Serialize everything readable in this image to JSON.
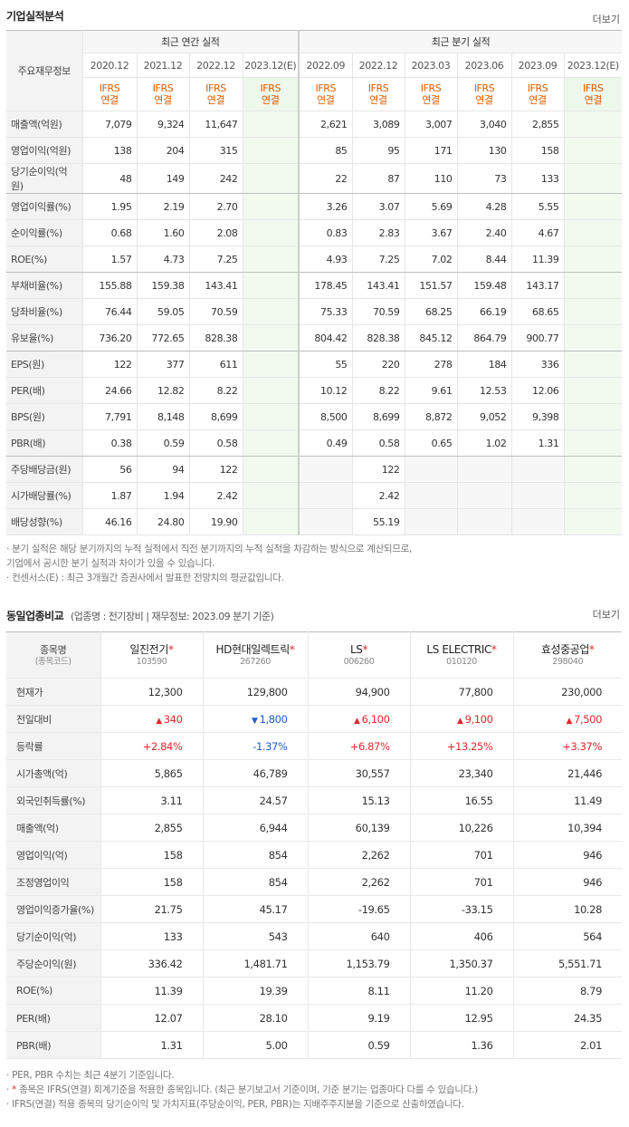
{
  "section1": {
    "title": "기업실적분석",
    "more": "더보기"
  },
  "fin": {
    "corner": "주요재무정보",
    "annual_title": "최근 연간 실적",
    "quarter_title": "최근 분기 실적",
    "annual_periods": [
      "2020.12",
      "2021.12",
      "2022.12",
      "2023.12(E)"
    ],
    "quarter_periods": [
      "2022.09",
      "2022.12",
      "2023.03",
      "2023.06",
      "2023.09",
      "2023.12(E)"
    ],
    "ifrs_line1": "IFRS",
    "ifrs_line2": "연결",
    "rows": [
      {
        "label": "매출액(억원)",
        "annual": [
          "7,079",
          "9,324",
          "11,647",
          ""
        ],
        "quarter": [
          "2,621",
          "3,089",
          "3,007",
          "3,040",
          "2,855",
          ""
        ]
      },
      {
        "label": "영업이익(억원)",
        "annual": [
          "138",
          "204",
          "315",
          ""
        ],
        "quarter": [
          "85",
          "95",
          "171",
          "130",
          "158",
          ""
        ]
      },
      {
        "label": "당기순이익(억원)",
        "annual": [
          "48",
          "149",
          "242",
          ""
        ],
        "quarter": [
          "22",
          "87",
          "110",
          "73",
          "133",
          ""
        ]
      },
      {
        "label": "영업이익률(%)",
        "annual": [
          "1.95",
          "2.19",
          "2.70",
          ""
        ],
        "quarter": [
          "3.26",
          "3.07",
          "5.69",
          "4.28",
          "5.55",
          ""
        ]
      },
      {
        "label": "순이익률(%)",
        "annual": [
          "0.68",
          "1.60",
          "2.08",
          ""
        ],
        "quarter": [
          "0.83",
          "2.83",
          "3.67",
          "2.40",
          "4.67",
          ""
        ]
      },
      {
        "label": "ROE(%)",
        "annual": [
          "1.57",
          "4.73",
          "7.25",
          ""
        ],
        "quarter": [
          "4.93",
          "7.25",
          "7.02",
          "8.44",
          "11.39",
          ""
        ]
      },
      {
        "label": "부채비율(%)",
        "annual": [
          "155.88",
          "159.38",
          "143.41",
          ""
        ],
        "quarter": [
          "178.45",
          "143.41",
          "151.57",
          "159.48",
          "143.17",
          ""
        ]
      },
      {
        "label": "당좌비율(%)",
        "annual": [
          "76.44",
          "59.05",
          "70.59",
          ""
        ],
        "quarter": [
          "75.33",
          "70.59",
          "68.25",
          "66.19",
          "68.65",
          ""
        ]
      },
      {
        "label": "유보율(%)",
        "annual": [
          "736.20",
          "772.65",
          "828.38",
          ""
        ],
        "quarter": [
          "804.42",
          "828.38",
          "845.12",
          "864.79",
          "900.77",
          ""
        ]
      },
      {
        "label": "EPS(원)",
        "annual": [
          "122",
          "377",
          "611",
          ""
        ],
        "quarter": [
          "55",
          "220",
          "278",
          "184",
          "336",
          ""
        ]
      },
      {
        "label": "PER(배)",
        "annual": [
          "24.66",
          "12.82",
          "8.22",
          ""
        ],
        "quarter": [
          "10.12",
          "8.22",
          "9.61",
          "12.53",
          "12.06",
          ""
        ]
      },
      {
        "label": "BPS(원)",
        "annual": [
          "7,791",
          "8,148",
          "8,699",
          ""
        ],
        "quarter": [
          "8,500",
          "8,699",
          "8,872",
          "9,052",
          "9,398",
          ""
        ]
      },
      {
        "label": "PBR(배)",
        "annual": [
          "0.38",
          "0.59",
          "0.58",
          ""
        ],
        "quarter": [
          "0.49",
          "0.58",
          "0.65",
          "1.02",
          "1.31",
          ""
        ]
      },
      {
        "label": "주당배당금(원)",
        "annual": [
          "56",
          "94",
          "122",
          ""
        ],
        "quarter": [
          "",
          "122",
          "",
          "",
          "",
          ""
        ]
      },
      {
        "label": "시가배당률(%)",
        "annual": [
          "1.87",
          "1.94",
          "2.42",
          ""
        ],
        "quarter": [
          "",
          "2.42",
          "",
          "",
          "",
          ""
        ]
      },
      {
        "label": "배당성향(%)",
        "annual": [
          "46.16",
          "24.80",
          "19.90",
          ""
        ],
        "quarter": [
          "",
          "55.19",
          "",
          "",
          "",
          ""
        ]
      }
    ]
  },
  "notes1": [
    "· 분기 실적은 해당 분기까지의 누적 실적에서 직전 분기까지의 누적 실적을 차감하는 방식으로 계산되므로,",
    "   기업에서 공시한 분기 실적과 차이가 있을 수 있습니다.",
    "· 컨센서스(E) : 최근 3개월간 증권사에서 발표한 전망치의 평균값입니다."
  ],
  "section2": {
    "title": "동일업종비교",
    "subtitle": "(업종명 : 전기장비 | 재무정보: 2023.09 분기 기준)",
    "more": "더보기"
  },
  "peer": {
    "corner_line1": "종목명",
    "corner_line2": "(종목코드)",
    "companies": [
      {
        "name": "일진전기",
        "code": "103590"
      },
      {
        "name": "HD현대일렉트릭",
        "code": "267260"
      },
      {
        "name": "LS",
        "code": "006260"
      },
      {
        "name": "LS ELECTRIC",
        "code": "010120"
      },
      {
        "name": "효성중공업",
        "code": "298040"
      }
    ],
    "star": "*",
    "rows": [
      {
        "label": "현재가",
        "values": [
          "12,300",
          "129,800",
          "94,900",
          "77,800",
          "230,000"
        ]
      },
      {
        "label": "전일대비",
        "values": [
          "340",
          "1,800",
          "6,100",
          "9,100",
          "7,500"
        ],
        "dir": [
          "up",
          "down",
          "up",
          "up",
          "up"
        ]
      },
      {
        "label": "등락률",
        "values": [
          "+2.84%",
          "-1.37%",
          "+6.87%",
          "+13.25%",
          "+3.37%"
        ],
        "dir": [
          "up",
          "down",
          "up",
          "up",
          "up"
        ]
      },
      {
        "label": "시가총액(억)",
        "values": [
          "5,865",
          "46,789",
          "30,557",
          "23,340",
          "21,446"
        ]
      },
      {
        "label": "외국인취득률(%)",
        "values": [
          "3.11",
          "24.57",
          "15.13",
          "16.55",
          "11.49"
        ]
      },
      {
        "label": "매출액(억)",
        "values": [
          "2,855",
          "6,944",
          "60,139",
          "10,226",
          "10,394"
        ]
      },
      {
        "label": "영업이익(억)",
        "values": [
          "158",
          "854",
          "2,262",
          "701",
          "946"
        ]
      },
      {
        "label": "조정영업이익",
        "values": [
          "158",
          "854",
          "2,262",
          "701",
          "946"
        ]
      },
      {
        "label": "영업이익증가율(%)",
        "values": [
          "21.75",
          "45.17",
          "-19.65",
          "-33.15",
          "10.28"
        ]
      },
      {
        "label": "당기순이익(억)",
        "values": [
          "133",
          "543",
          "640",
          "406",
          "564"
        ]
      },
      {
        "label": "주당순이익(원)",
        "values": [
          "336.42",
          "1,481.71",
          "1,153.79",
          "1,350.37",
          "5,551.71"
        ]
      },
      {
        "label": "ROE(%)",
        "values": [
          "11.39",
          "19.39",
          "8.11",
          "11.20",
          "8.79"
        ]
      },
      {
        "label": "PER(배)",
        "values": [
          "12.07",
          "28.10",
          "9.19",
          "12.95",
          "24.35"
        ]
      },
      {
        "label": "PBR(배)",
        "values": [
          "1.31",
          "5.00",
          "0.59",
          "1.36",
          "2.01"
        ]
      }
    ]
  },
  "notes2": [
    "· PER, PBR 수치는 최근 4분기 기준입니다.",
    "· * 종목은 IFRS(연결) 회계기준을 적용한 종목입니다. (최근 분기보고서 기준이며, 기준 분기는 업종마다 다를 수 있습니다.)",
    "· IFRS(연결) 적용 종목의 당기순이익 및 가치지표(주당순이익, PER, PBR)는 지배주주지분을 기준으로 산출하였습니다."
  ]
}
